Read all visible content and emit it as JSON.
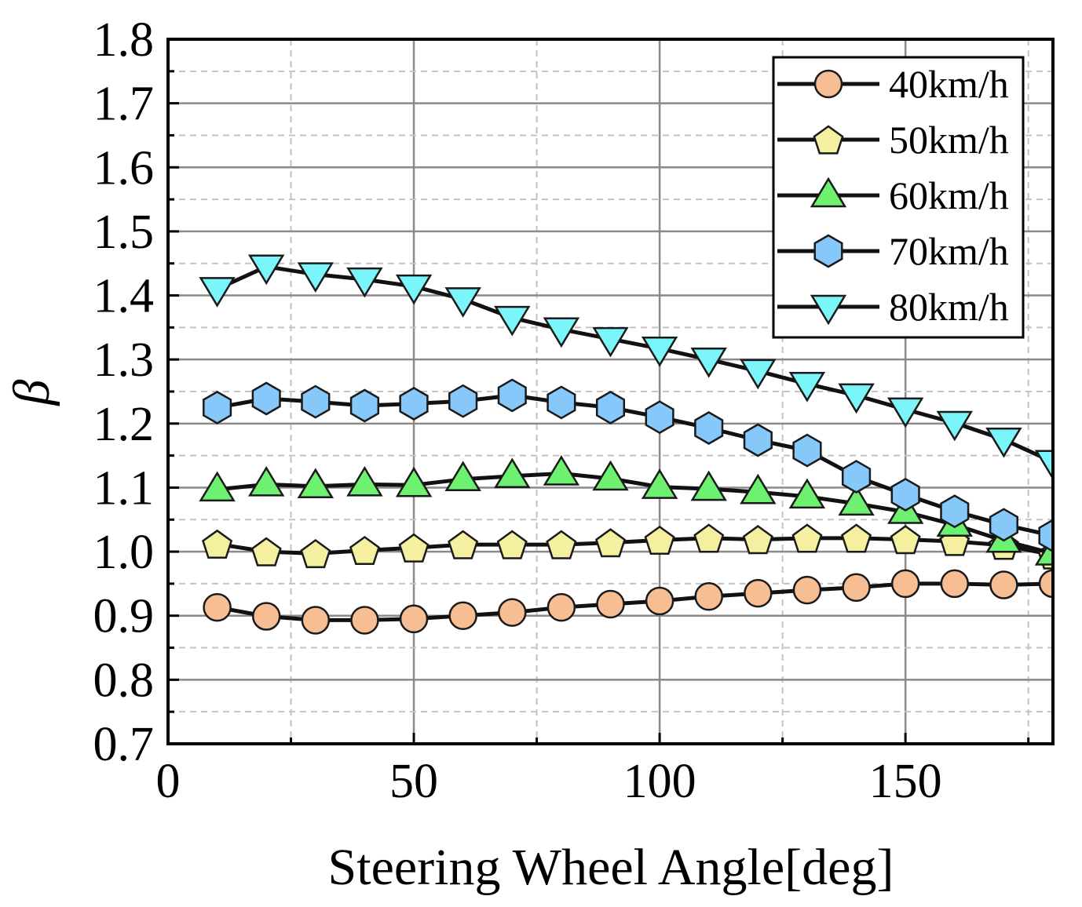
{
  "chart_data": {
    "type": "line",
    "xlabel": "Steering Wheel Angle[deg]",
    "ylabel": "β",
    "xlim": [
      0,
      180
    ],
    "ylim": [
      0.7,
      1.8
    ],
    "xticks": [
      0,
      50,
      100,
      150
    ],
    "xtick_labels": [
      "0",
      "50",
      "100",
      "150"
    ],
    "yticks": [
      0.7,
      0.8,
      0.9,
      1.0,
      1.1,
      1.2,
      1.3,
      1.4,
      1.5,
      1.6,
      1.7,
      1.8
    ],
    "ytick_labels": [
      "0.7",
      "0.8",
      "0.9",
      "1.0",
      "1.1",
      "1.2",
      "1.3",
      "1.4",
      "1.5",
      "1.6",
      "1.7",
      "1.8"
    ],
    "grid": true,
    "legend_position": "top-right",
    "x": [
      10,
      20,
      30,
      40,
      50,
      60,
      70,
      80,
      90,
      100,
      110,
      120,
      130,
      140,
      150,
      160,
      170,
      180
    ],
    "series": [
      {
        "name": "40km/h",
        "marker": "circle",
        "color": "#F7BE94",
        "values": [
          0.913,
          0.899,
          0.893,
          0.893,
          0.895,
          0.9,
          0.905,
          0.913,
          0.918,
          0.923,
          0.93,
          0.935,
          0.94,
          0.944,
          0.95,
          0.95,
          0.948,
          0.95
        ]
      },
      {
        "name": "50km/h",
        "marker": "pentagon",
        "color": "#F5F0A0",
        "values": [
          1.012,
          1.0,
          0.997,
          1.002,
          1.006,
          1.011,
          1.011,
          1.011,
          1.014,
          1.018,
          1.021,
          1.019,
          1.021,
          1.021,
          1.019,
          1.016,
          1.01,
          0.995
        ]
      },
      {
        "name": "60km/h",
        "marker": "triangle-up",
        "color": "#6EF070",
        "values": [
          1.097,
          1.105,
          1.102,
          1.105,
          1.104,
          1.113,
          1.118,
          1.122,
          1.114,
          1.101,
          1.098,
          1.093,
          1.086,
          1.075,
          1.062,
          1.042,
          1.017,
          0.997
        ]
      },
      {
        "name": "70km/h",
        "marker": "hexagon",
        "color": "#86C8FA",
        "values": [
          1.225,
          1.239,
          1.234,
          1.228,
          1.231,
          1.235,
          1.244,
          1.233,
          1.225,
          1.21,
          1.193,
          1.174,
          1.158,
          1.117,
          1.089,
          1.063,
          1.042,
          1.025
        ]
      },
      {
        "name": "80km/h",
        "marker": "triangle-down",
        "color": "#7AF5FA",
        "values": [
          1.41,
          1.445,
          1.433,
          1.425,
          1.414,
          1.394,
          1.365,
          1.347,
          1.332,
          1.317,
          1.3,
          1.282,
          1.262,
          1.244,
          1.222,
          1.201,
          1.175,
          1.14
        ]
      }
    ]
  }
}
